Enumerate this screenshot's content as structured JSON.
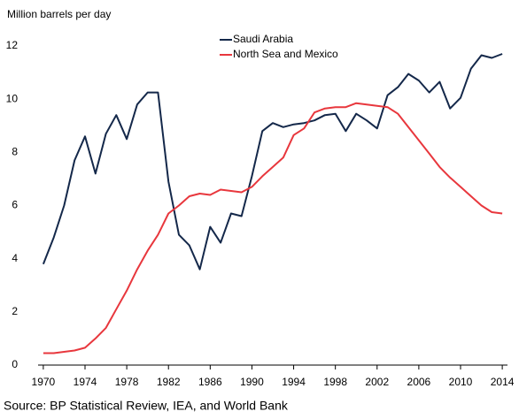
{
  "chart_data": {
    "type": "line",
    "subtitle": "Million barrels per day",
    "source": "Source: BP Statistical Review, IEA, and World Bank",
    "x": [
      1970,
      1971,
      1972,
      1973,
      1974,
      1975,
      1976,
      1977,
      1978,
      1979,
      1980,
      1981,
      1982,
      1983,
      1984,
      1985,
      1986,
      1987,
      1988,
      1989,
      1990,
      1991,
      1992,
      1993,
      1994,
      1995,
      1996,
      1997,
      1998,
      1999,
      2000,
      2001,
      2002,
      2003,
      2004,
      2005,
      2006,
      2007,
      2008,
      2009,
      2010,
      2011,
      2012,
      2013,
      2014
    ],
    "series": [
      {
        "name": "Saudi Arabia",
        "color": "#14284a",
        "values": [
          3.8,
          4.8,
          6.0,
          7.7,
          8.6,
          7.2,
          8.7,
          9.4,
          8.5,
          9.8,
          10.25,
          10.25,
          6.9,
          4.9,
          4.5,
          3.6,
          5.2,
          4.6,
          5.7,
          5.6,
          7.1,
          8.8,
          9.1,
          8.95,
          9.05,
          9.1,
          9.2,
          9.4,
          9.45,
          8.8,
          9.45,
          9.2,
          8.9,
          10.15,
          10.45,
          10.95,
          10.7,
          10.25,
          10.65,
          9.65,
          10.05,
          11.15,
          11.65,
          11.55,
          11.7
        ]
      },
      {
        "name": "North Sea and Mexico",
        "color": "#e8373d",
        "values": [
          0.45,
          0.45,
          0.5,
          0.55,
          0.65,
          1.0,
          1.4,
          2.1,
          2.8,
          3.6,
          4.3,
          4.9,
          5.7,
          6.0,
          6.35,
          6.45,
          6.4,
          6.6,
          6.55,
          6.5,
          6.7,
          7.1,
          7.45,
          7.8,
          8.65,
          8.9,
          9.5,
          9.65,
          9.7,
          9.7,
          9.85,
          9.8,
          9.75,
          9.7,
          9.45,
          8.95,
          8.45,
          7.95,
          7.45,
          7.05,
          6.7,
          6.35,
          6.0,
          5.75,
          5.7
        ]
      }
    ],
    "xlim": [
      1969.5,
      2014.5
    ],
    "xticks": [
      1970,
      1974,
      1978,
      1982,
      1986,
      1990,
      1994,
      1998,
      2002,
      2006,
      2010,
      2014
    ],
    "ylim": [
      0,
      12
    ],
    "yticks": [
      0,
      2,
      4,
      6,
      8,
      10,
      12
    ],
    "grid": false
  }
}
